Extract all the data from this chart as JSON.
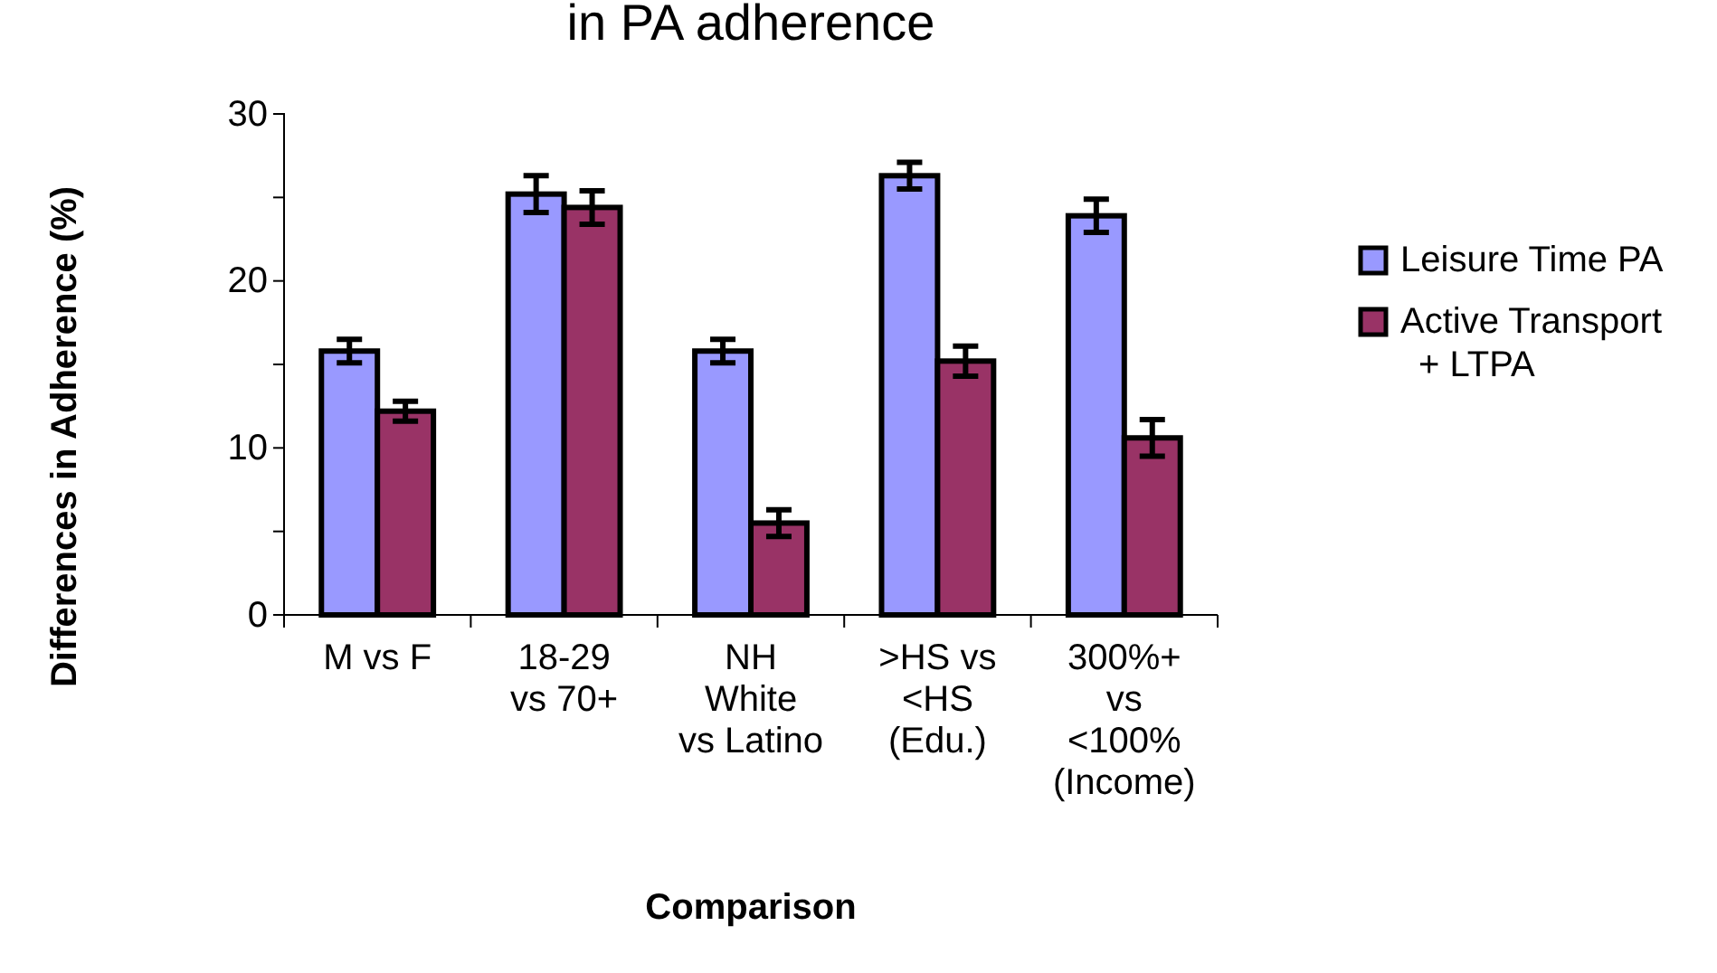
{
  "chart_data": {
    "type": "bar",
    "title": "in PA adherence",
    "xlabel": "Comparison",
    "ylabel": "Differences in Adherence (%)",
    "categories": [
      "M vs F",
      "18-29\nvs 70+",
      "NH\nWhite\nvs Latino",
      ">HS vs\n<HS\n(Edu.)",
      "300%+\nvs\n<100%\n(Income)"
    ],
    "series": [
      {
        "name": "Leisure Time PA",
        "color": "#9999ff",
        "values": [
          15.8,
          25.2,
          15.8,
          26.3,
          23.9
        ],
        "errors": [
          0.7,
          1.1,
          0.7,
          0.8,
          1.0
        ]
      },
      {
        "name": "Active Transport\n+ LTPA",
        "color": "#993366",
        "values": [
          12.2,
          24.4,
          5.5,
          15.2,
          10.6
        ],
        "errors": [
          0.6,
          1.0,
          0.8,
          0.9,
          1.1
        ]
      }
    ],
    "ylim": [
      0,
      30
    ],
    "yticks": [
      0,
      {
        "value": 5,
        "label": null
      },
      10,
      {
        "value": 15,
        "label": null
      },
      20,
      {
        "value": 25,
        "label": null
      },
      30
    ],
    "legend": "right",
    "grid": false
  }
}
